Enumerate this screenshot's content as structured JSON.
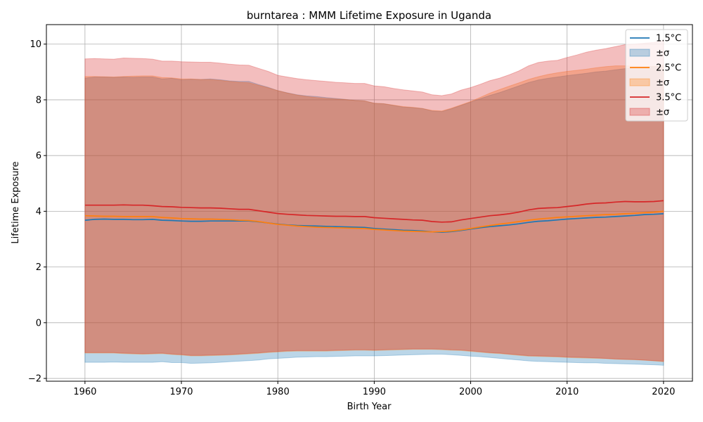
{
  "chart_data": {
    "type": "area",
    "title": "burntarea : MMM Lifetime Exposure in Uganda",
    "xlabel": "Birth Year",
    "ylabel": "Lifetime Exposure",
    "xlim": [
      1956,
      2023
    ],
    "ylim": [
      -2.1,
      10.7
    ],
    "xticks": [
      1960,
      1970,
      1980,
      1990,
      2000,
      2010,
      2020
    ],
    "yticks": [
      -2,
      0,
      2,
      4,
      6,
      8,
      10
    ],
    "ytick_labels": [
      "−2",
      "0",
      "2",
      "4",
      "6",
      "8",
      "10"
    ],
    "grid": true,
    "legend_position": "top-right",
    "x": [
      1960,
      1961,
      1962,
      1963,
      1964,
      1965,
      1966,
      1967,
      1968,
      1969,
      1970,
      1971,
      1972,
      1973,
      1974,
      1975,
      1976,
      1977,
      1978,
      1979,
      1980,
      1981,
      1982,
      1983,
      1984,
      1985,
      1986,
      1987,
      1988,
      1989,
      1990,
      1991,
      1992,
      1993,
      1994,
      1995,
      1996,
      1997,
      1998,
      1999,
      2000,
      2001,
      2002,
      2003,
      2004,
      2005,
      2006,
      2007,
      2008,
      2009,
      2010,
      2011,
      2012,
      2013,
      2014,
      2015,
      2016,
      2017,
      2018,
      2019,
      2020
    ],
    "series": [
      {
        "name": "1.5°C",
        "band_name": "±σ",
        "color": "#1f77b4",
        "band_color": "#1f77b4",
        "mean": [
          3.68,
          3.71,
          3.72,
          3.71,
          3.71,
          3.7,
          3.7,
          3.71,
          3.68,
          3.67,
          3.65,
          3.64,
          3.64,
          3.65,
          3.65,
          3.65,
          3.65,
          3.65,
          3.62,
          3.58,
          3.54,
          3.51,
          3.49,
          3.48,
          3.47,
          3.46,
          3.45,
          3.44,
          3.43,
          3.42,
          3.38,
          3.36,
          3.34,
          3.32,
          3.31,
          3.29,
          3.26,
          3.25,
          3.27,
          3.31,
          3.36,
          3.41,
          3.45,
          3.48,
          3.51,
          3.55,
          3.6,
          3.64,
          3.66,
          3.69,
          3.72,
          3.74,
          3.76,
          3.78,
          3.79,
          3.81,
          3.83,
          3.85,
          3.88,
          3.89,
          3.91
        ],
        "upper": [
          8.78,
          8.82,
          8.82,
          8.81,
          8.82,
          8.81,
          8.82,
          8.82,
          8.75,
          8.77,
          8.72,
          8.74,
          8.73,
          8.75,
          8.72,
          8.68,
          8.66,
          8.66,
          8.55,
          8.45,
          8.33,
          8.25,
          8.18,
          8.14,
          8.12,
          8.08,
          8.05,
          8.02,
          7.98,
          7.96,
          7.88,
          7.86,
          7.8,
          7.74,
          7.72,
          7.69,
          7.6,
          7.58,
          7.68,
          7.8,
          7.92,
          8.04,
          8.16,
          8.26,
          8.38,
          8.5,
          8.62,
          8.71,
          8.77,
          8.82,
          8.87,
          8.91,
          8.95,
          9.0,
          9.03,
          9.08,
          9.12,
          9.15,
          9.18,
          9.19,
          9.22
        ],
        "lower": [
          -1.42,
          -1.42,
          -1.42,
          -1.41,
          -1.42,
          -1.42,
          -1.42,
          -1.42,
          -1.4,
          -1.43,
          -1.43,
          -1.46,
          -1.45,
          -1.44,
          -1.42,
          -1.4,
          -1.38,
          -1.36,
          -1.34,
          -1.3,
          -1.28,
          -1.26,
          -1.24,
          -1.23,
          -1.22,
          -1.22,
          -1.21,
          -1.2,
          -1.19,
          -1.19,
          -1.19,
          -1.18,
          -1.17,
          -1.16,
          -1.15,
          -1.14,
          -1.13,
          -1.13,
          -1.15,
          -1.17,
          -1.2,
          -1.22,
          -1.25,
          -1.28,
          -1.31,
          -1.34,
          -1.37,
          -1.39,
          -1.4,
          -1.41,
          -1.42,
          -1.43,
          -1.44,
          -1.44,
          -1.46,
          -1.47,
          -1.48,
          -1.49,
          -1.5,
          -1.51,
          -1.53
        ]
      },
      {
        "name": "2.5°C",
        "band_name": "±σ",
        "color": "#ff7f0e",
        "band_color": "#ff7f0e",
        "mean": [
          3.84,
          3.83,
          3.82,
          3.82,
          3.81,
          3.81,
          3.81,
          3.81,
          3.78,
          3.76,
          3.74,
          3.73,
          3.72,
          3.72,
          3.71,
          3.7,
          3.68,
          3.67,
          3.63,
          3.58,
          3.53,
          3.5,
          3.47,
          3.45,
          3.43,
          3.42,
          3.41,
          3.4,
          3.39,
          3.38,
          3.35,
          3.33,
          3.31,
          3.29,
          3.28,
          3.27,
          3.26,
          3.27,
          3.29,
          3.33,
          3.38,
          3.44,
          3.49,
          3.54,
          3.58,
          3.63,
          3.68,
          3.72,
          3.75,
          3.78,
          3.8,
          3.82,
          3.84,
          3.86,
          3.88,
          3.89,
          3.91,
          3.93,
          3.95,
          3.97,
          4.0
        ],
        "upper": [
          8.84,
          8.84,
          8.83,
          8.82,
          8.84,
          8.85,
          8.86,
          8.86,
          8.8,
          8.79,
          8.75,
          8.75,
          8.73,
          8.73,
          8.7,
          8.66,
          8.63,
          8.61,
          8.52,
          8.43,
          8.33,
          8.24,
          8.17,
          8.12,
          8.08,
          8.05,
          8.03,
          8.01,
          7.98,
          7.96,
          7.88,
          7.86,
          7.81,
          7.76,
          7.73,
          7.69,
          7.62,
          7.6,
          7.7,
          7.82,
          7.94,
          8.09,
          8.24,
          8.37,
          8.49,
          8.61,
          8.73,
          8.83,
          8.91,
          8.97,
          9.02,
          9.06,
          9.1,
          9.15,
          9.19,
          9.22,
          9.22,
          9.21,
          9.2,
          9.2,
          9.24
        ],
        "lower": [
          -1.09,
          -1.09,
          -1.09,
          -1.09,
          -1.11,
          -1.12,
          -1.13,
          -1.12,
          -1.11,
          -1.14,
          -1.16,
          -1.19,
          -1.19,
          -1.18,
          -1.17,
          -1.16,
          -1.14,
          -1.12,
          -1.1,
          -1.07,
          -1.05,
          -1.03,
          -1.02,
          -1.02,
          -1.02,
          -1.02,
          -1.01,
          -1.0,
          -0.99,
          -0.99,
          -1.0,
          -0.99,
          -0.98,
          -0.97,
          -0.96,
          -0.96,
          -0.96,
          -0.97,
          -0.99,
          -1.0,
          -1.03,
          -1.06,
          -1.09,
          -1.11,
          -1.14,
          -1.17,
          -1.2,
          -1.21,
          -1.22,
          -1.23,
          -1.25,
          -1.26,
          -1.27,
          -1.28,
          -1.29,
          -1.31,
          -1.32,
          -1.33,
          -1.35,
          -1.37,
          -1.4
        ]
      },
      {
        "name": "3.5°C",
        "band_name": "±σ",
        "color": "#d62728",
        "band_color": "#d62728",
        "mean": [
          4.22,
          4.22,
          4.22,
          4.22,
          4.23,
          4.22,
          4.22,
          4.2,
          4.17,
          4.16,
          4.14,
          4.13,
          4.12,
          4.12,
          4.11,
          4.09,
          4.07,
          4.07,
          4.02,
          3.97,
          3.92,
          3.89,
          3.87,
          3.85,
          3.84,
          3.83,
          3.82,
          3.82,
          3.81,
          3.81,
          3.77,
          3.75,
          3.73,
          3.71,
          3.69,
          3.68,
          3.63,
          3.61,
          3.62,
          3.69,
          3.74,
          3.79,
          3.84,
          3.87,
          3.91,
          3.97,
          4.05,
          4.1,
          4.12,
          4.13,
          4.17,
          4.21,
          4.26,
          4.29,
          4.3,
          4.33,
          4.35,
          4.34,
          4.34,
          4.35,
          4.38
        ],
        "upper": [
          9.47,
          9.48,
          9.47,
          9.46,
          9.5,
          9.49,
          9.48,
          9.46,
          9.39,
          9.39,
          9.37,
          9.36,
          9.35,
          9.35,
          9.32,
          9.28,
          9.25,
          9.24,
          9.13,
          9.02,
          8.88,
          8.82,
          8.76,
          8.72,
          8.69,
          8.66,
          8.63,
          8.61,
          8.59,
          8.59,
          8.5,
          8.47,
          8.41,
          8.36,
          8.32,
          8.28,
          8.18,
          8.15,
          8.21,
          8.35,
          8.44,
          8.56,
          8.69,
          8.78,
          8.9,
          9.04,
          9.22,
          9.34,
          9.39,
          9.42,
          9.52,
          9.61,
          9.71,
          9.78,
          9.84,
          9.91,
          9.98,
          10.0,
          10.03,
          10.06,
          10.13
        ],
        "lower": [
          -1.07,
          -1.07,
          -1.07,
          -1.07,
          -1.09,
          -1.1,
          -1.11,
          -1.1,
          -1.09,
          -1.12,
          -1.14,
          -1.17,
          -1.17,
          -1.16,
          -1.15,
          -1.14,
          -1.12,
          -1.1,
          -1.08,
          -1.05,
          -1.03,
          -1.01,
          -1.0,
          -1.0,
          -1.0,
          -1.0,
          -0.99,
          -0.98,
          -0.97,
          -0.97,
          -0.98,
          -0.97,
          -0.96,
          -0.95,
          -0.94,
          -0.94,
          -0.94,
          -0.95,
          -0.97,
          -0.98,
          -1.01,
          -1.04,
          -1.07,
          -1.09,
          -1.12,
          -1.15,
          -1.18,
          -1.19,
          -1.2,
          -1.21,
          -1.23,
          -1.24,
          -1.25,
          -1.26,
          -1.28,
          -1.3,
          -1.31,
          -1.32,
          -1.34,
          -1.36,
          -1.38
        ]
      }
    ]
  }
}
